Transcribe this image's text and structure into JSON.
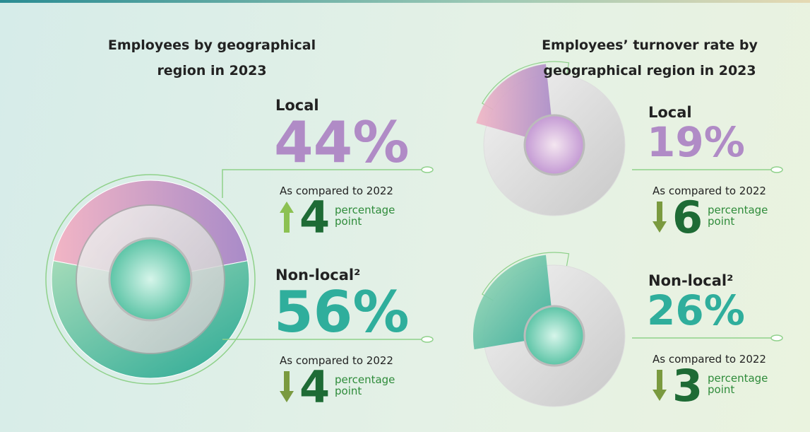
{
  "chart_data": [
    {
      "type": "donut",
      "title": "Employees by geographical region in 2023",
      "categories": [
        "Local",
        "Non-local²"
      ],
      "values": [
        44,
        56
      ],
      "value_labels": [
        "44%",
        "56%"
      ],
      "colors": [
        "#b08bc6",
        "#2fae9c"
      ],
      "comparison_label": "As compared to 2022",
      "changes": [
        4,
        4
      ],
      "change_directions": [
        "up",
        "down"
      ],
      "change_unit": "percentage point"
    },
    {
      "type": "gauge",
      "title": "Employees’ turnover rate by geographical region in 2023",
      "categories": [
        "Local",
        "Non-local²"
      ],
      "values": [
        19,
        26
      ],
      "value_labels": [
        "19%",
        "26%"
      ],
      "colors": [
        "#b08bc6",
        "#2fae9c"
      ],
      "comparison_label": "As compared to 2022",
      "changes": [
        6,
        3
      ],
      "change_directions": [
        "down",
        "down"
      ],
      "change_unit": "percentage point"
    }
  ]
}
